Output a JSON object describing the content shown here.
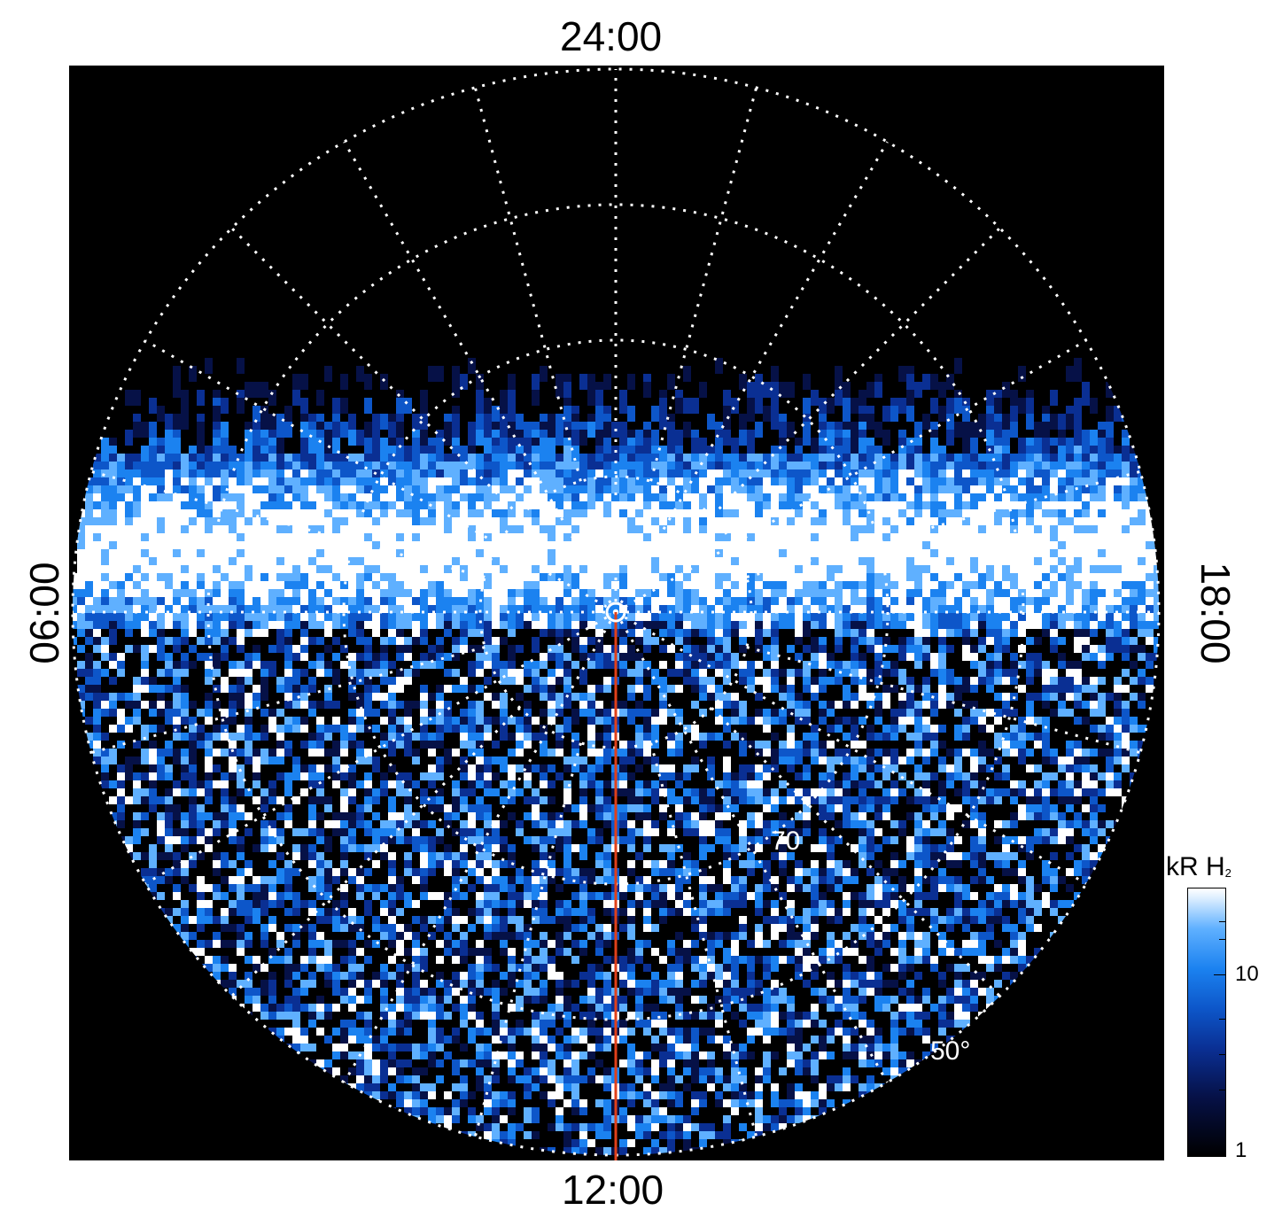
{
  "local_time_labels": {
    "top": "24:00",
    "bottom": "12:00",
    "left": "06:00",
    "right": "18:00"
  },
  "latitude_labels": {
    "inner": "70",
    "outer": "50°"
  },
  "colorbar": {
    "title_main": "kR H",
    "title_sub": "2",
    "tick_high": "10",
    "tick_low": "1",
    "scale": "log",
    "colors": [
      "#000000",
      "#061147",
      "#0a2f93",
      "#0d56c9",
      "#1b82f0",
      "#5fb0ff",
      "#ffffff"
    ]
  },
  "colors": {
    "background": "#000000",
    "grid": "#ffffff",
    "meridian_line": "#e0401a"
  }
}
